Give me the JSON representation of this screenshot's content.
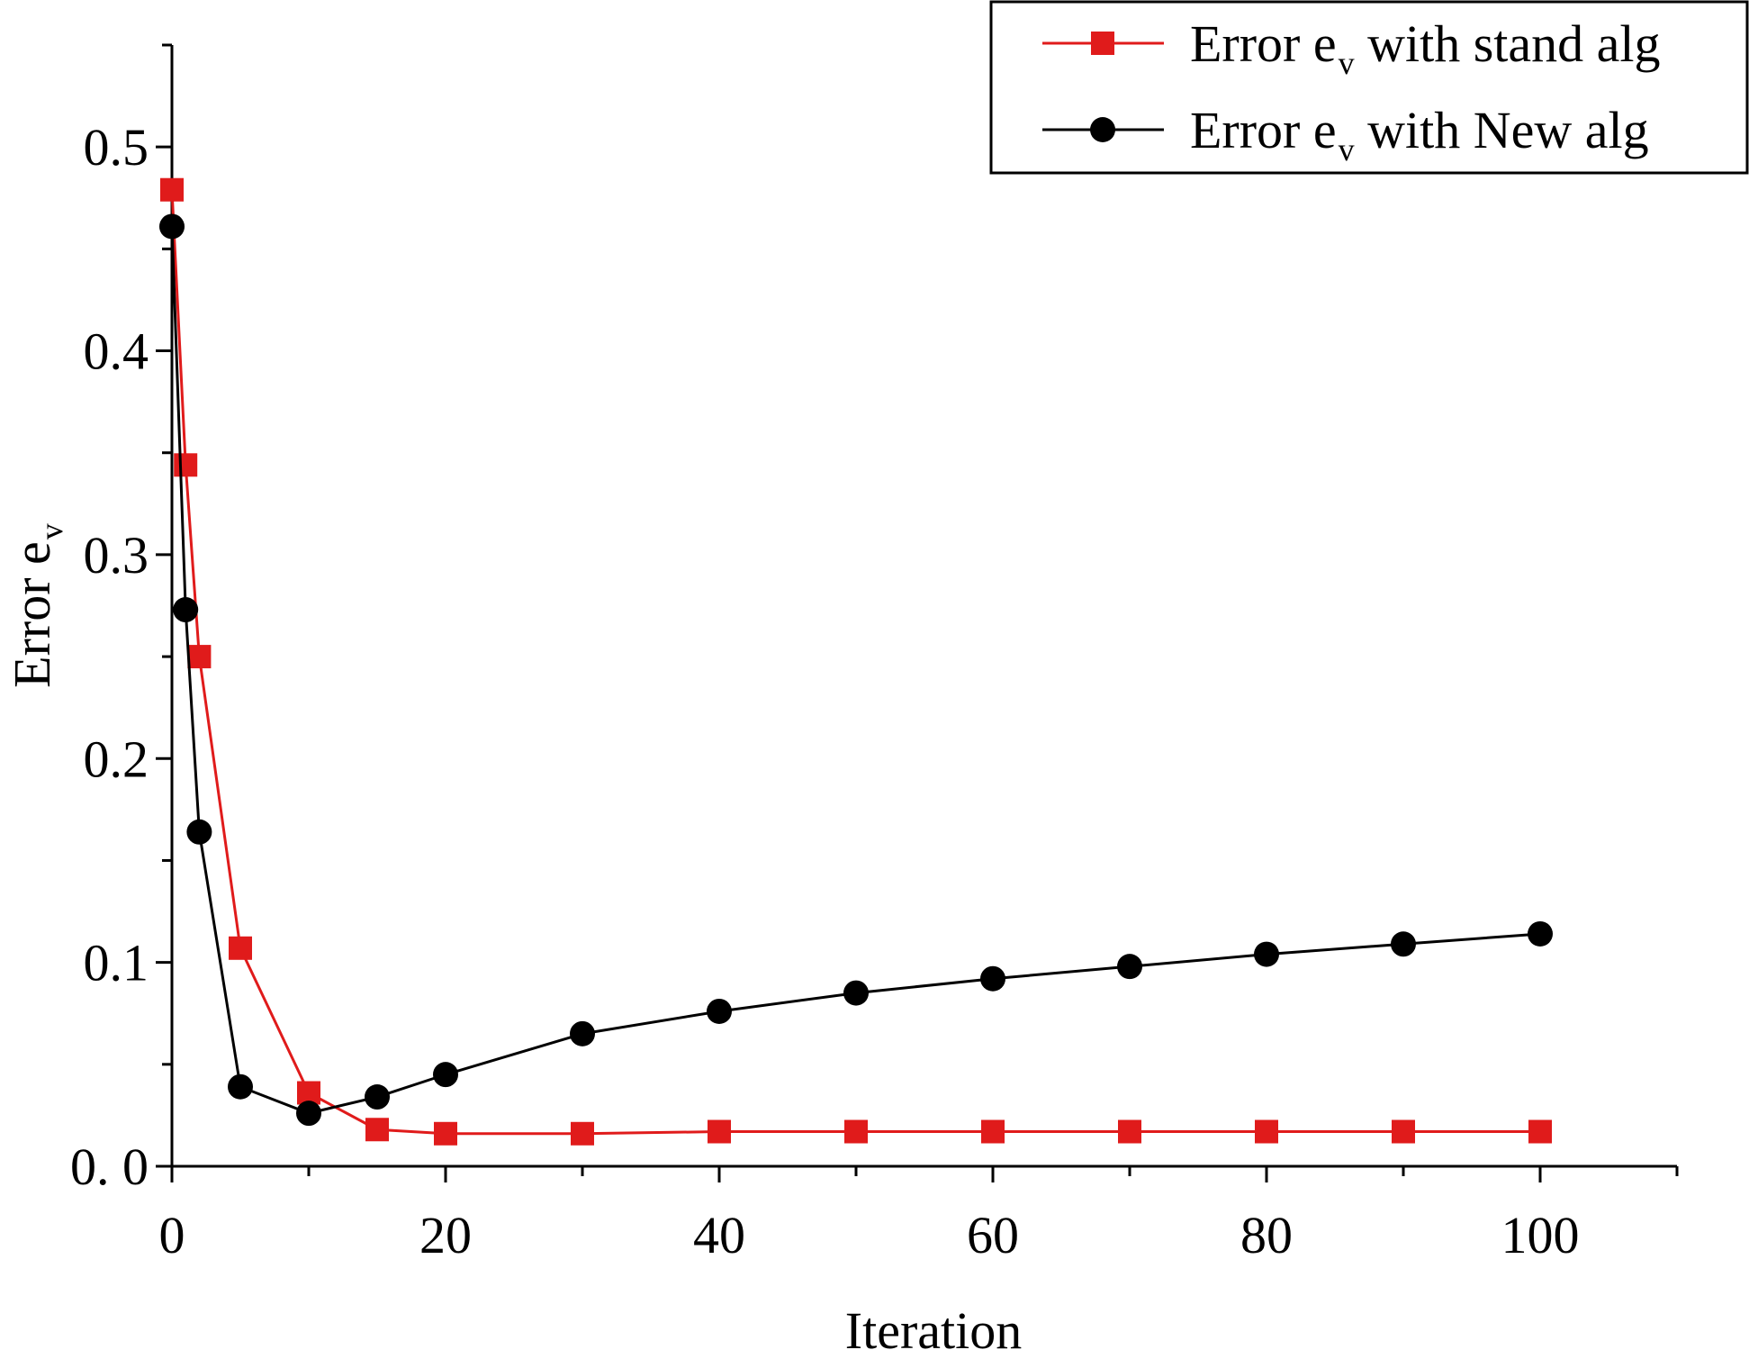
{
  "chart_data": {
    "type": "line",
    "title": "",
    "xlabel": "Iteration",
    "ylabel_main": "Error e",
    "ylabel_sub": "v",
    "xlim": [
      0,
      110
    ],
    "ylim": [
      0,
      0.55
    ],
    "xticks": [
      0,
      20,
      40,
      60,
      80,
      100
    ],
    "xtick_labels": [
      "0",
      "20",
      "40",
      "60",
      "80",
      "100"
    ],
    "yticks": [
      0,
      0.1,
      0.2,
      0.3,
      0.4,
      0.5
    ],
    "ytick_labels": [
      "0. 0",
      "0.1",
      "0.2",
      "0.3",
      "0.4",
      "0.5"
    ],
    "grid": false,
    "legend_position": "top-right",
    "series": [
      {
        "name_main": "Error e",
        "name_sub": "v",
        "name_rest": " with stand alg",
        "color": "#e01b1b",
        "marker": "square",
        "x": [
          0,
          1,
          2,
          5,
          10,
          15,
          20,
          30,
          40,
          50,
          60,
          70,
          80,
          90,
          100
        ],
        "y": [
          0.479,
          0.344,
          0.25,
          0.107,
          0.036,
          0.018,
          0.016,
          0.016,
          0.017,
          0.017,
          0.017,
          0.017,
          0.017,
          0.017,
          0.017
        ]
      },
      {
        "name_main": "Error e",
        "name_sub": "v",
        "name_rest": " with New alg",
        "color": "#000000",
        "marker": "circle",
        "x": [
          0,
          1,
          2,
          5,
          10,
          15,
          20,
          30,
          40,
          50,
          60,
          70,
          80,
          90,
          100
        ],
        "y": [
          0.461,
          0.273,
          0.164,
          0.039,
          0.026,
          0.034,
          0.045,
          0.065,
          0.076,
          0.085,
          0.092,
          0.098,
          0.104,
          0.109,
          0.114
        ]
      }
    ]
  }
}
